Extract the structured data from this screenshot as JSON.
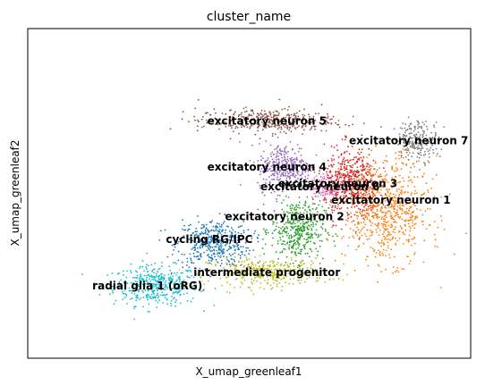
{
  "chart_data": {
    "type": "scatter",
    "title": "cluster_name",
    "xlabel": "X_umap_greenleaf1",
    "ylabel": "X_umap_greenleaf2",
    "grid": false,
    "legend": "on data",
    "xticks": [],
    "yticks": [],
    "xlim": [
      0,
      100
    ],
    "ylim": [
      0,
      100
    ],
    "clusters": [
      {
        "name": "radial glia 1 (oRG)",
        "color": "#17becf",
        "center": [
          29,
          22
        ],
        "spread": [
          8,
          5
        ],
        "n": 420,
        "label_at": [
          27,
          22
        ]
      },
      {
        "name": "cycling RG/IPC",
        "color": "#1f77b4",
        "center": [
          42,
          35
        ],
        "spread": [
          7,
          6
        ],
        "n": 420,
        "label_at": [
          41,
          36
        ]
      },
      {
        "name": "intermediate progenitor",
        "color": "#bcbd22",
        "center": [
          54,
          26
        ],
        "spread": [
          11,
          3.5
        ],
        "n": 360,
        "label_at": [
          54,
          26
        ]
      },
      {
        "name": "excitatory neuron 2",
        "color": "#2ca02c",
        "center": [
          61,
          39
        ],
        "spread": [
          5,
          8
        ],
        "n": 420,
        "label_at": [
          58,
          43
        ]
      },
      {
        "name": "excitatory neuron 4",
        "color": "#9467bd",
        "center": [
          58,
          58
        ],
        "spread": [
          5,
          6
        ],
        "n": 340,
        "label_at": [
          54,
          58
        ]
      },
      {
        "name": "excitatory neuron 5",
        "color": "#8c564b",
        "center": [
          54,
          72
        ],
        "spread": [
          13,
          3
        ],
        "n": 380,
        "label_at": [
          54,
          72
        ]
      },
      {
        "name": "excitatory neuron 6",
        "color": "#e377c2",
        "center": [
          68,
          52
        ],
        "spread": [
          4,
          3
        ],
        "n": 180,
        "label_at": [
          66,
          52
        ]
      },
      {
        "name": "excitatory neuron 3",
        "color": "#d62728",
        "center": [
          73,
          53
        ],
        "spread": [
          5,
          9
        ],
        "n": 480,
        "label_at": [
          70,
          53
        ]
      },
      {
        "name": "excitatory neuron 1",
        "color": "#ff7f0e",
        "center": [
          81,
          45
        ],
        "spread": [
          8,
          13
        ],
        "n": 700,
        "label_at": [
          82,
          48
        ]
      },
      {
        "name": "excitatory neuron 7",
        "color": "#7f7f7f",
        "center": [
          88,
          66
        ],
        "spread": [
          4,
          5
        ],
        "n": 220,
        "label_at": [
          86,
          66
        ]
      }
    ]
  }
}
